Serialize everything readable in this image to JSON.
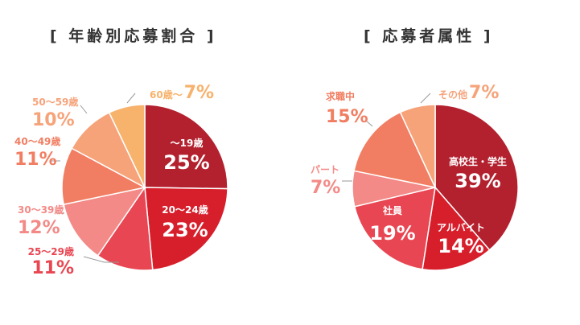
{
  "charts": {
    "age": {
      "title": "[ 年齢別応募割合 ]"
    },
    "attribute": {
      "title": "[ 応募者属性 ]"
    }
  },
  "chart_data": [
    {
      "type": "pie",
      "title": "[ 年齢別応募割合 ]",
      "start": "12 o'clock",
      "direction": "clockwise",
      "slices": [
        {
          "label": "～19歳",
          "value": 25,
          "value_label": "25%",
          "color": "#b3212f",
          "label_position": "inside"
        },
        {
          "label": "20～24歳",
          "value": 23,
          "value_label": "23%",
          "color": "#d71f2c",
          "label_position": "inside"
        },
        {
          "label": "25～29歳",
          "value": 11,
          "value_label": "11%",
          "color": "#e84652",
          "label_position": "outside"
        },
        {
          "label": "30～39歳",
          "value": 12,
          "value_label": "12%",
          "color": "#f38a87",
          "label_position": "outside"
        },
        {
          "label": "40～49歳",
          "value": 11,
          "value_label": "11%",
          "color": "#f17e62",
          "label_position": "outside"
        },
        {
          "label": "50～59歳",
          "value": 10,
          "value_label": "10%",
          "color": "#f6a37a",
          "label_position": "outside"
        },
        {
          "label": "60歳～",
          "value": 7,
          "value_label": "7%",
          "color": "#f7b26c",
          "label_position": "outside"
        }
      ]
    },
    {
      "type": "pie",
      "title": "[ 応募者属性 ]",
      "start": "12 o'clock",
      "direction": "clockwise",
      "slices": [
        {
          "label": "高校生・学生",
          "value": 39,
          "value_label": "39%",
          "color": "#b3212f",
          "label_position": "inside"
        },
        {
          "label": "アルバイト",
          "value": 14,
          "value_label": "14%",
          "color": "#d71f2c",
          "label_position": "inside"
        },
        {
          "label": "社員",
          "value": 19,
          "value_label": "19%",
          "color": "#e84652",
          "label_position": "inside"
        },
        {
          "label": "パート",
          "value": 7,
          "value_label": "7%",
          "color": "#f38a87",
          "label_position": "outside"
        },
        {
          "label": "求職中",
          "value": 15,
          "value_label": "15%",
          "color": "#f17e62",
          "label_position": "outside"
        },
        {
          "label": "その他",
          "value": 7,
          "value_label": "7%",
          "color": "#f6a37a",
          "label_position": "outside"
        }
      ]
    }
  ]
}
